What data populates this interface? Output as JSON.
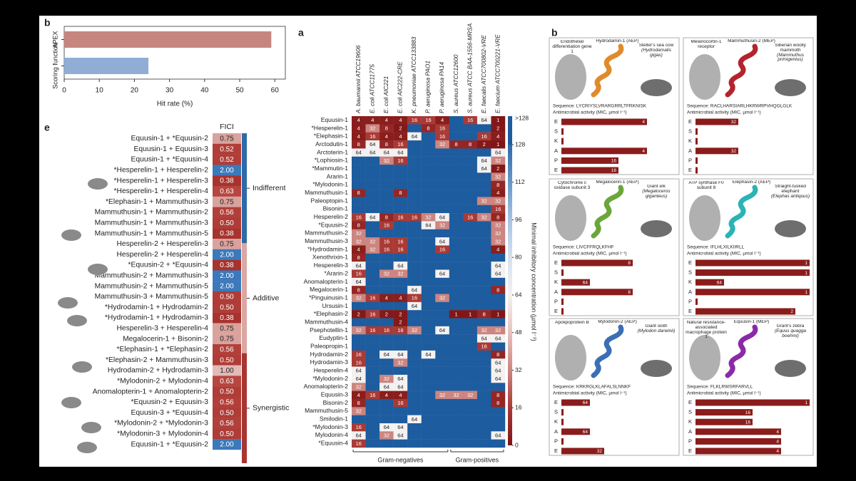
{
  "panel_labels": [
    "b",
    "a",
    "e",
    "b"
  ],
  "chart_data": [
    {
      "type": "hbar",
      "categories": [
        "APEX",
        "Scoring function"
      ],
      "values": [
        59,
        24
      ],
      "colors": [
        "#c7857f",
        "#8fadd5"
      ],
      "xlim": [
        0,
        63
      ],
      "xticks": [
        0,
        10,
        20,
        30,
        40,
        50,
        60
      ],
      "xlabel": "Hit rate (%)"
    },
    {
      "type": "heatmap",
      "columns": [
        "A. baumannii ATCC19606",
        "E. coli ATCC11775",
        "E. coli AIC221",
        "E. coli AIC222-CRE",
        "K. pneumoniae ATCC133883",
        "P. aeruginosa PAO1",
        "P. aeruginosa PA14",
        "S. aureus ATCC12600",
        "S. aureus ATCC BAA-1556-MRSA",
        "E. faecalis ATCC700802-VRE",
        "E. faecium ATCC700221-VRE"
      ],
      "rows": [
        "Equusin-1",
        "*Hesperelin-1",
        "*Elephasin-1",
        "Arctodutin-1",
        "Arctoterin-1",
        "*Lophiosin-1",
        "*Mammutin-1",
        "Ararin-1",
        "*Mylodonin-1",
        "Mammuthusin-1",
        "Paleoptopin-1",
        "Bisonin-1",
        "Hesperelin-2",
        "*Equusin-2",
        "Mammuthusin-2",
        "Mammuthusin-3",
        "*Hydrodamin-1",
        "Xenothrixin-1",
        "Hesperelin-3",
        "*Ararin-2",
        "Anomalopterin-1",
        "Megalocerin-1",
        "*Pinguinusin-1",
        "Ursusin-1",
        "*Elephasin-2",
        "Mammuthusin-4",
        "Psephotellin-1",
        "Eudyptin-1",
        "Paleopropin-1",
        "Hydrodamin-2",
        "Hydrodamin-3",
        "Hesperelin-4",
        "*Mylodonin-2",
        "Anomalopterin-2",
        "Equusin-3",
        "Bisonin-2",
        "Mammuthusin-5",
        "Smilodin-1",
        "*Mylodonin-3",
        "Mylodonin-4",
        "*Equusin-4"
      ],
      "values": [
        [
          4,
          4,
          4,
          4,
          16,
          16,
          4,
          null,
          16,
          64,
          1
        ],
        [
          4,
          32,
          8,
          2,
          null,
          8,
          16,
          null,
          null,
          null,
          2
        ],
        [
          4,
          16,
          4,
          4,
          64,
          null,
          16,
          null,
          null,
          16,
          4
        ],
        [
          8,
          64,
          8,
          16,
          null,
          null,
          32,
          8,
          8,
          2,
          1
        ],
        [
          64,
          64,
          64,
          64,
          null,
          null,
          null,
          null,
          null,
          null,
          64
        ],
        [
          null,
          null,
          32,
          16,
          null,
          null,
          null,
          null,
          null,
          64,
          32
        ],
        [
          null,
          null,
          null,
          null,
          null,
          null,
          null,
          null,
          null,
          64,
          2
        ],
        [
          null,
          null,
          null,
          null,
          null,
          null,
          null,
          null,
          null,
          null,
          32
        ],
        [
          null,
          null,
          null,
          null,
          null,
          null,
          null,
          null,
          null,
          null,
          8
        ],
        [
          8,
          null,
          null,
          8,
          null,
          null,
          null,
          null,
          null,
          null,
          4
        ],
        [
          null,
          null,
          null,
          null,
          null,
          null,
          null,
          null,
          null,
          32,
          32
        ],
        [
          null,
          null,
          null,
          null,
          null,
          null,
          null,
          null,
          null,
          null,
          16
        ],
        [
          16,
          64,
          8,
          16,
          16,
          32,
          64,
          null,
          16,
          32,
          8
        ],
        [
          8,
          null,
          16,
          null,
          null,
          64,
          32,
          null,
          null,
          null,
          32
        ],
        [
          32,
          null,
          null,
          null,
          null,
          null,
          null,
          null,
          null,
          null,
          32
        ],
        [
          32,
          32,
          16,
          16,
          null,
          null,
          64,
          null,
          null,
          null,
          32
        ],
        [
          4,
          32,
          16,
          16,
          null,
          null,
          16,
          null,
          null,
          null,
          4
        ],
        [
          8,
          null,
          null,
          null,
          null,
          null,
          null,
          null,
          null,
          null,
          null
        ],
        [
          64,
          null,
          null,
          64,
          null,
          null,
          null,
          null,
          null,
          null,
          64
        ],
        [
          16,
          null,
          32,
          32,
          null,
          null,
          64,
          null,
          null,
          null,
          64
        ],
        [
          64,
          null,
          null,
          null,
          null,
          null,
          null,
          null,
          null,
          null,
          null
        ],
        [
          8,
          null,
          null,
          null,
          64,
          null,
          null,
          null,
          null,
          null,
          8
        ],
        [
          32,
          16,
          4,
          4,
          16,
          null,
          32,
          null,
          null,
          null,
          null
        ],
        [
          null,
          null,
          null,
          null,
          64,
          null,
          null,
          null,
          null,
          null,
          null
        ],
        [
          2,
          16,
          2,
          2,
          null,
          null,
          null,
          1,
          1,
          8,
          1
        ],
        [
          null,
          null,
          null,
          2,
          null,
          null,
          null,
          null,
          null,
          null,
          null
        ],
        [
          32,
          16,
          16,
          16,
          32,
          null,
          64,
          null,
          null,
          32,
          32
        ],
        [
          null,
          null,
          null,
          null,
          null,
          null,
          null,
          null,
          null,
          64,
          64
        ],
        [
          null,
          null,
          null,
          null,
          null,
          null,
          null,
          null,
          null,
          16,
          null
        ],
        [
          16,
          null,
          64,
          64,
          null,
          64,
          null,
          null,
          null,
          null,
          8
        ],
        [
          16,
          null,
          null,
          32,
          null,
          null,
          null,
          null,
          null,
          null,
          64
        ],
        [
          64,
          null,
          null,
          null,
          null,
          null,
          null,
          null,
          null,
          null,
          64
        ],
        [
          64,
          null,
          32,
          64,
          null,
          null,
          null,
          null,
          null,
          null,
          64
        ],
        [
          32,
          null,
          64,
          64,
          null,
          null,
          null,
          null,
          null,
          null,
          null
        ],
        [
          4,
          16,
          4,
          4,
          null,
          null,
          32,
          32,
          32,
          null,
          8
        ],
        [
          8,
          null,
          null,
          16,
          null,
          null,
          null,
          null,
          null,
          null,
          8
        ],
        [
          32,
          null,
          null,
          null,
          null,
          null,
          null,
          null,
          null,
          null,
          null
        ],
        [
          null,
          null,
          null,
          null,
          64,
          null,
          null,
          null,
          null,
          null,
          null
        ],
        [
          16,
          null,
          64,
          64,
          null,
          null,
          null,
          null,
          null,
          null,
          null
        ],
        [
          64,
          null,
          32,
          64,
          null,
          null,
          null,
          null,
          null,
          null,
          64
        ],
        [
          16,
          null,
          null,
          null,
          null,
          null,
          null,
          null,
          null,
          null,
          null
        ]
      ],
      "colorbar": {
        "label": "Minimal inhibitory concentration (µmol l⁻¹)",
        "ylim": [
          0,
          128
        ],
        "yticks": [
          0,
          16,
          32,
          48,
          64,
          80,
          96,
          112,
          128
        ],
        "over_label": ">128",
        "over_color": "#1d5c9e",
        "colormap": [
          [
            0,
            "#7e1414"
          ],
          [
            16,
            "#a93a35"
          ],
          [
            32,
            "#cc8580"
          ],
          [
            48,
            "#e6c2be"
          ],
          [
            64,
            "#f4f1f1"
          ],
          [
            80,
            "#d3e1ef"
          ],
          [
            96,
            "#a6c3e1"
          ],
          [
            112,
            "#6898c9"
          ],
          [
            128,
            "#2f6aa8"
          ]
        ]
      },
      "groups": [
        {
          "label": "Gram-negatives",
          "columns": [
            0,
            6
          ]
        },
        {
          "label": "Gram-positives",
          "columns": [
            7,
            10
          ]
        }
      ]
    },
    {
      "type": "fici",
      "header": "FICI",
      "pairs": [
        "Equusin-1 + *Equusin-2",
        "Equusin-1 + Equusin-3",
        "Equusin-1 + *Equusin-4",
        "*Hesperelin-1 + Hesperelin-2",
        "*Hesperelin-1 + Hesperelin-3",
        "*Hesperelin-1 + Hesperelin-4",
        "*Elephasin-1 + Mammuthusin-3",
        "Mammuthusin-1 + Mammuthusin-2",
        "Mammuthusin-1 + Mammuthusin-3",
        "Mammuthusin-1 + Mammuthusin-5",
        "Hesperelin-2 + Hesperelin-3",
        "Hesperelin-2 + Hesperelin-4",
        "*Equusin-2 + *Equusin-4",
        "Mammuthusin-2 + Mammuthusin-3",
        "Mammuthusin-2 + Mammuthusin-5",
        "Mammuthusin-3 + Mammuthusin-5",
        "*Hydrodamin-1 + Hydrodamin-2",
        "*Hydrodamin-1 + Hydrodamin-3",
        "Hesperelin-3 + Hesperelin-4",
        "Megalocerin-1 + Bisonin-2",
        "*Elephasin-1 + *Elephasin-2",
        "*Elephasin-2 + Mammuthusin-3",
        "Hydrodamin-2 + Hydrodamin-3",
        "*Mylodonin-2 + Mylodonin-4",
        "Anomalopterin-1 + Anomalopterin-2",
        "*Equusin-2 + Equusin-3",
        "Equusin-3 + *Equusin-4",
        "*Mylodonin-2 + *Mylodonin-3",
        "*Mylodonin-3 + Mylodonin-4",
        "Equusin-1 + *Equusin-2"
      ],
      "values": [
        0.75,
        0.52,
        0.52,
        2,
        0.38,
        0.63,
        0.75,
        0.56,
        0.5,
        0.38,
        0.75,
        2,
        0.38,
        2,
        2,
        0.5,
        0.5,
        0.38,
        0.75,
        0.75,
        0.56,
        0.5,
        1,
        0.63,
        0.5,
        0.56,
        0.5,
        0.56,
        0.5,
        2
      ],
      "value_labels": [
        "0.75",
        "0.52",
        "0.52",
        "2.00",
        "0.38",
        "0.63",
        "0.75",
        "0.56",
        "0.50",
        "0.38",
        "0.75",
        "2.00",
        "0.38",
        "2.00",
        "2.00",
        "0.50",
        "0.50",
        "0.38",
        "0.75",
        "0.75",
        "0.56",
        "0.50",
        "1.00",
        "0.63",
        "0.50",
        "0.56",
        "0.50",
        "0.56",
        "0.50",
        "2.00"
      ],
      "colormap": [
        [
          0.38,
          "#a8322d"
        ],
        [
          0.63,
          "#b6463f"
        ],
        [
          0.75,
          "#d9a29d"
        ],
        [
          1,
          "#e2bab6"
        ],
        [
          1.5,
          "#8eafd6"
        ],
        [
          2,
          "#3c79bb"
        ]
      ],
      "groups": [
        {
          "label": "Indifferent",
          "color": "#2f6aa8"
        },
        {
          "label": "Additive",
          "color": "#dba7a2"
        },
        {
          "label": "Synergistic",
          "color": "#a83530"
        }
      ]
    },
    {
      "type": "mic_bars",
      "protein": "Endothelial differentiation gene 1",
      "peptide": "Hydrodamin-1 (AEP)",
      "animal": "Steller's sea cow",
      "species": "(Hydrodamalis gigas)",
      "sequence": "Sequence: LYCRIYSLVRARGRRLTFRKNISK",
      "xlabel": "Antimicrobial activity (MIC, µmol l⁻¹)",
      "categories": [
        "E",
        "S",
        "K",
        "A",
        "P",
        "E"
      ],
      "values": [
        4,
        null,
        null,
        4,
        16,
        16
      ],
      "color": "#8b1c1c",
      "helix_color": "#e08a2a"
    },
    {
      "type": "mic_bars",
      "protein": "Melanocortin-1 receptor",
      "peptide": "Mammuthusin-2 (MEP)",
      "animal": "Siberian woolly mammoth",
      "species": "(Mammuthus primigenius)",
      "sequence": "Sequence: RACLHARSIARLHKRWRPVHQGLGLK",
      "xlabel": "Antimicrobial activity (MIC, µmol l⁻¹)",
      "categories": [
        "E",
        "S",
        "K",
        "A",
        "P",
        "E"
      ],
      "values": [
        32,
        null,
        null,
        32,
        null,
        null
      ],
      "color": "#8b1c1c",
      "helix_color": "#b3242c"
    },
    {
      "type": "mic_bars",
      "protein": "Cytochrome c oxidase subunit 3",
      "peptide": "Megalocerin-1 (AEP)",
      "animal": "Giant elk",
      "species": "(Megaloceros giganteus)",
      "sequence": "Sequence: LIVCFFRQLKFHF",
      "xlabel": "Antimicrobial activity (MIC, µmol l⁻¹)",
      "categories": [
        "E",
        "S",
        "K",
        "A",
        "P",
        "E"
      ],
      "values": [
        8,
        null,
        64,
        8,
        null,
        null
      ],
      "color": "#8b1c1c",
      "helix_color": "#6aa63a"
    },
    {
      "type": "mic_bars",
      "protein": "ATP synthase F0 subunit 8",
      "peptide": "Elephasin-2 (AEP)",
      "animal": "Straight-tusked elephant",
      "species": "(Elephas antiquus)",
      "sequence": "Sequence: IFLHLXILKIIRLL",
      "xlabel": "Antimicrobial activity (MIC, µmol l⁻¹)",
      "categories": [
        "E",
        "S",
        "K",
        "A",
        "P",
        "E"
      ],
      "values": [
        1,
        1,
        64,
        1,
        null,
        2
      ],
      "color": "#8b1c1c",
      "helix_color": "#2bb3b5"
    },
    {
      "type": "mic_bars",
      "protein": "Apolipoprotein B",
      "peptide": "Mylodonin-2 (AEP)",
      "animal": "Giant sloth",
      "species": "(Mylodon darwinii)",
      "sequence": "Sequence: KRKRGLKLAFALSLNNKF",
      "xlabel": "Antimicrobial activity (MIC, µmol l⁻¹)",
      "categories": [
        "E",
        "S",
        "K",
        "A",
        "P",
        "E"
      ],
      "values": [
        64,
        null,
        null,
        64,
        null,
        32
      ],
      "color": "#8b1c1c",
      "helix_color": "#3a6fb5"
    },
    {
      "type": "mic_bars",
      "protein": "Natural resistance-associated macrophage protein 1",
      "peptide": "Equusin-1 (MEP)",
      "animal": "Grant's zebra",
      "species": "(Equus quagga boehmi)",
      "sequence": "Sequence: FLKLRWSRFARVLL",
      "xlabel": "Antimicrobial activity (MIC, µmol l⁻¹)",
      "categories": [
        "E",
        "S",
        "K",
        "A",
        "P",
        "E"
      ],
      "values": [
        1,
        16,
        16,
        4,
        4,
        4
      ],
      "color": "#8b1c1c",
      "helix_color": "#8a2aa8"
    }
  ]
}
